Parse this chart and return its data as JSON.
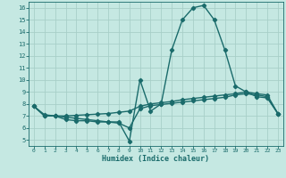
{
  "bg_color": "#c5e8e2",
  "grid_color": "#a8cfc8",
  "line_color": "#1a6b6b",
  "line_width": 1.0,
  "marker_size": 2.2,
  "xlabel": "Humidex (Indice chaleur)",
  "xlim": [
    -0.5,
    23.5
  ],
  "ylim": [
    4.5,
    16.5
  ],
  "xticks": [
    0,
    1,
    2,
    3,
    4,
    5,
    6,
    7,
    8,
    9,
    10,
    11,
    12,
    13,
    14,
    15,
    16,
    17,
    18,
    19,
    20,
    21,
    22,
    23
  ],
  "yticks": [
    5,
    6,
    7,
    8,
    9,
    10,
    11,
    12,
    13,
    14,
    15,
    16
  ],
  "line1_x": [
    0,
    1,
    2,
    3,
    4,
    5,
    6,
    7,
    8,
    9,
    10,
    11,
    12,
    13,
    14,
    15,
    16,
    17,
    18,
    19,
    20,
    21,
    22,
    23
  ],
  "line1_y": [
    7.8,
    7.0,
    7.0,
    6.9,
    6.8,
    6.7,
    6.6,
    6.5,
    6.5,
    4.9,
    10.0,
    7.4,
    8.0,
    12.5,
    15.0,
    16.0,
    16.2,
    15.0,
    12.5,
    9.5,
    9.0,
    8.6,
    8.5,
    7.2
  ],
  "line2_x": [
    0,
    1,
    2,
    3,
    4,
    5,
    6,
    7,
    8,
    9,
    10,
    11,
    12,
    13,
    14,
    15,
    16,
    17,
    18,
    19,
    20,
    21,
    22,
    23
  ],
  "line2_y": [
    7.8,
    7.1,
    7.0,
    7.0,
    7.05,
    7.1,
    7.15,
    7.2,
    7.3,
    7.4,
    7.8,
    8.0,
    8.1,
    8.2,
    8.35,
    8.45,
    8.55,
    8.65,
    8.75,
    8.85,
    9.0,
    8.85,
    8.75,
    7.2
  ],
  "line3_x": [
    0,
    1,
    2,
    3,
    4,
    5,
    6,
    7,
    8,
    9,
    10,
    11,
    12,
    13,
    14,
    15,
    16,
    17,
    18,
    19,
    20,
    21,
    22,
    23
  ],
  "line3_y": [
    7.8,
    7.0,
    7.0,
    6.7,
    6.6,
    6.6,
    6.5,
    6.5,
    6.4,
    6.0,
    7.6,
    7.85,
    7.95,
    8.05,
    8.15,
    8.25,
    8.35,
    8.45,
    8.55,
    8.75,
    8.85,
    8.75,
    8.6,
    7.2
  ]
}
